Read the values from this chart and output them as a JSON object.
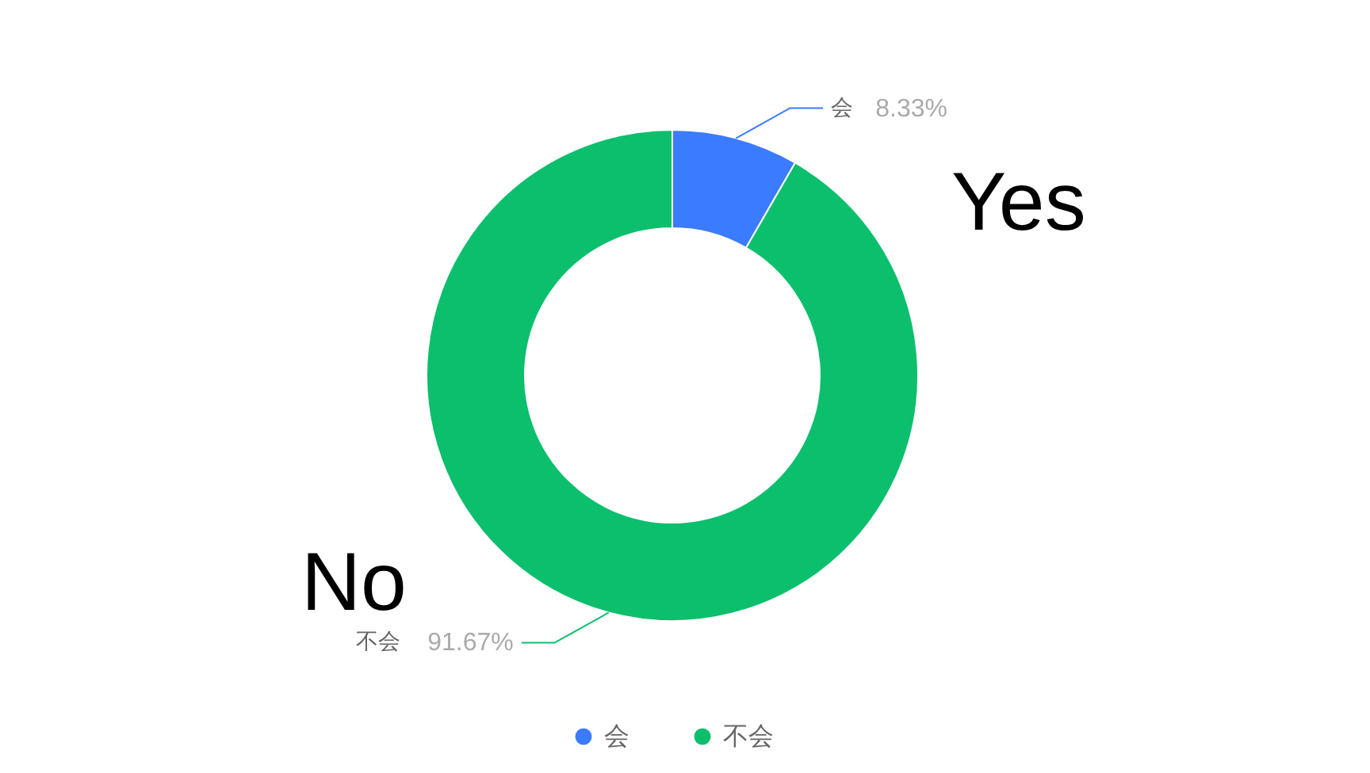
{
  "chart_data": {
    "type": "donut",
    "categories": [
      "会",
      "不会"
    ],
    "values": [
      8.33,
      91.67
    ],
    "colors": [
      "#3b7bfd",
      "#0bbf6c"
    ],
    "value_labels": [
      "8.33%",
      "91.67%"
    ],
    "annotations": [
      "Yes",
      "No"
    ],
    "legend": "bottom"
  }
}
